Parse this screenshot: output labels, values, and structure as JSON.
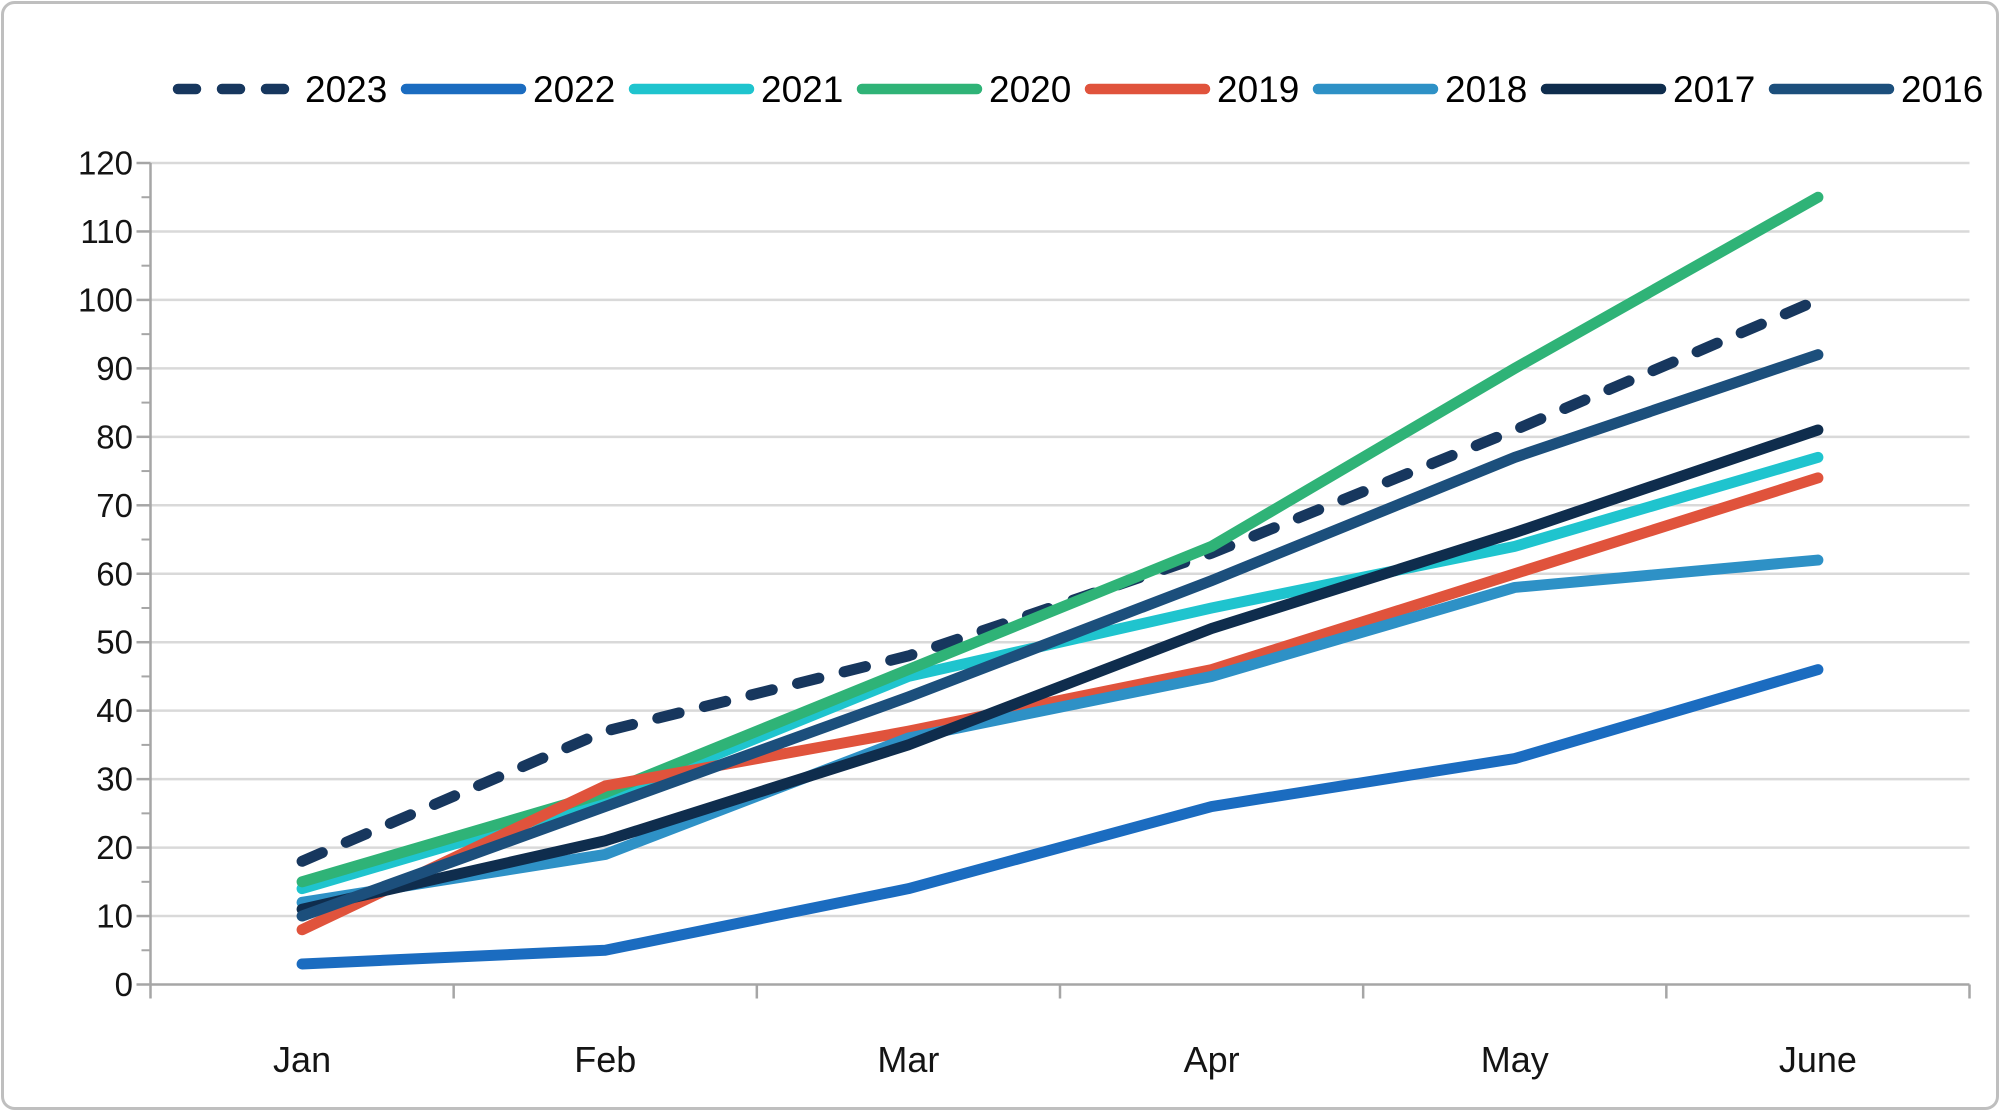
{
  "window": {
    "background": "#FFFFFF",
    "frame_border_color": "#BFBFBF"
  },
  "chart_data": {
    "type": "line",
    "title": "",
    "xlabel": "",
    "ylabel": "",
    "categories": [
      "Jan",
      "Feb",
      "Mar",
      "Apr",
      "May",
      "June"
    ],
    "series": [
      {
        "name": "2023",
        "color": "#17375E",
        "dashed": true,
        "values": [
          18,
          37,
          48,
          63,
          81,
          100
        ]
      },
      {
        "name": "2022",
        "color": "#1B6CC0",
        "dashed": false,
        "values": [
          3,
          5,
          14,
          26,
          33,
          46
        ]
      },
      {
        "name": "2021",
        "color": "#1FC4CE",
        "dashed": false,
        "values": [
          14,
          27,
          45,
          55,
          64,
          77
        ]
      },
      {
        "name": "2020",
        "color": "#2FB377",
        "dashed": false,
        "values": [
          15,
          28,
          46,
          64,
          90,
          115
        ]
      },
      {
        "name": "2019",
        "color": "#E0533C",
        "dashed": false,
        "values": [
          8,
          29,
          37,
          46,
          60,
          74
        ]
      },
      {
        "name": "2018",
        "color": "#2E91C6",
        "dashed": false,
        "values": [
          12,
          19,
          36,
          45,
          58,
          62
        ]
      },
      {
        "name": "2017",
        "color": "#0F2D4D",
        "dashed": false,
        "values": [
          11,
          21,
          35,
          52,
          66,
          81
        ]
      },
      {
        "name": "2016",
        "color": "#1C4F7C",
        "dashed": false,
        "values": [
          10,
          26,
          42,
          59,
          77,
          92
        ]
      }
    ],
    "ylim": [
      0,
      120
    ],
    "ytick_step": 10,
    "yticks": [
      "0",
      "10",
      "20",
      "30",
      "40",
      "50",
      "60",
      "70",
      "80",
      "90",
      "100",
      "110",
      "120"
    ],
    "grid": true,
    "gridline_color": "#D9D9D9",
    "axis_color": "#A6A6A6",
    "text_color": "#141414",
    "legend_position": "top",
    "line_width": 11
  }
}
